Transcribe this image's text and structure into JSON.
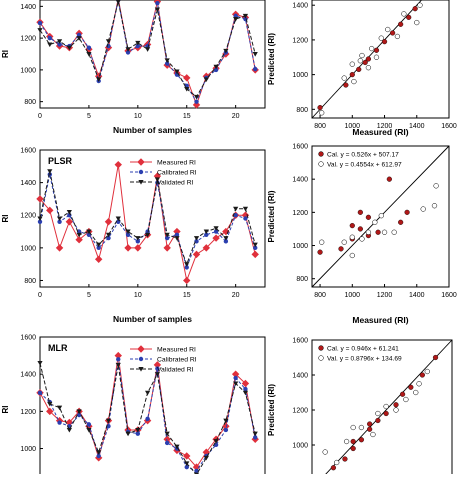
{
  "chart_data": [
    {
      "id": "top-left",
      "type": "line",
      "title": "",
      "xlabel": "Number of samples",
      "ylabel": "RI",
      "xlim": [
        0,
        23
      ],
      "ylim": [
        760,
        1440
      ],
      "xticks": [
        "0",
        "5",
        "10",
        "15",
        "20"
      ],
      "yticks": [
        "800",
        "1000",
        "1200",
        "1400"
      ],
      "series": [
        {
          "key": "measured",
          "values": [
            1300,
            1210,
            1150,
            1140,
            1230,
            1130,
            960,
            1140,
            1450,
            1120,
            1140,
            1160,
            1430,
            1030,
            980,
            950,
            780,
            960,
            1010,
            1100,
            1350,
            1330,
            1000
          ]
        },
        {
          "key": "calibrated",
          "values": [
            1295,
            1200,
            1160,
            1150,
            1220,
            1140,
            930,
            1150,
            1440,
            1110,
            1150,
            1150,
            1420,
            1040,
            970,
            900,
            800,
            950,
            1000,
            1110,
            1340,
            1320,
            1005
          ]
        },
        {
          "key": "validated",
          "values": [
            1250,
            1160,
            1180,
            1140,
            1200,
            1100,
            940,
            1180,
            1430,
            1130,
            1170,
            1130,
            1380,
            1060,
            990,
            880,
            830,
            940,
            1020,
            1120,
            1320,
            1340,
            1100
          ]
        }
      ]
    },
    {
      "id": "top-right",
      "type": "scatter",
      "xlabel": "Measured (RI)",
      "ylabel": "Predicted (RI)",
      "xlim": [
        750,
        1600
      ],
      "ylim": [
        750,
        1430
      ],
      "xticks": [
        "800",
        "1000",
        "1200",
        "1400",
        "1600"
      ],
      "yticks": [
        "800",
        "1000",
        "1200",
        "1400"
      ],
      "series": [
        {
          "key": "cal",
          "points": [
            [
              800,
              810
            ],
            [
              960,
              940
            ],
            [
              1000,
              1000
            ],
            [
              1040,
              1030
            ],
            [
              1080,
              1070
            ],
            [
              1100,
              1090
            ],
            [
              1150,
              1140
            ],
            [
              1200,
              1190
            ],
            [
              1250,
              1240
            ],
            [
              1300,
              1290
            ],
            [
              1350,
              1330
            ],
            [
              1390,
              1380
            ]
          ]
        },
        {
          "key": "val",
          "points": [
            [
              810,
              780
            ],
            [
              950,
              980
            ],
            [
              1000,
              1060
            ],
            [
              1060,
              1110
            ],
            [
              1100,
              1040
            ],
            [
              1120,
              1150
            ],
            [
              1150,
              1100
            ],
            [
              1180,
              1210
            ],
            [
              1220,
              1260
            ],
            [
              1280,
              1220
            ],
            [
              1320,
              1350
            ],
            [
              1400,
              1300
            ],
            [
              1420,
              1400
            ],
            [
              1050,
              1080
            ],
            [
              1010,
              960
            ]
          ]
        }
      ]
    },
    {
      "id": "mid-left",
      "type": "line",
      "title": "PLSR",
      "xlabel": "Number of samples",
      "ylabel": "RI",
      "xlim": [
        0,
        23
      ],
      "ylim": [
        760,
        1600
      ],
      "xticks": [
        "0",
        "5",
        "10",
        "15",
        "20"
      ],
      "yticks": [
        "800",
        "1000",
        "1200",
        "1400",
        "1600"
      ],
      "legend": [
        "Measured RI",
        "Calibrated RI",
        "Validated  RI"
      ],
      "series": [
        {
          "key": "measured",
          "values": [
            1300,
            1230,
            1000,
            1160,
            1050,
            1100,
            930,
            1160,
            1510,
            1000,
            1000,
            1080,
            1440,
            1000,
            1100,
            800,
            960,
            1000,
            1060,
            1100,
            1200,
            1200,
            960
          ]
        },
        {
          "key": "calibrated",
          "values": [
            1160,
            1450,
            1160,
            1200,
            1100,
            1080,
            1000,
            1060,
            1160,
            1080,
            1040,
            1100,
            1400,
            1060,
            1080,
            880,
            1040,
            1080,
            1100,
            1040,
            1200,
            1180,
            1000
          ]
        },
        {
          "key": "validated",
          "values": [
            1180,
            1470,
            1180,
            1220,
            1080,
            1100,
            1020,
            1080,
            1180,
            1100,
            1060,
            1080,
            1420,
            1080,
            1060,
            900,
            1060,
            1100,
            1120,
            1060,
            1240,
            1240,
            1020
          ]
        }
      ]
    },
    {
      "id": "mid-right",
      "type": "scatter",
      "xlabel": "Measured (RI)",
      "ylabel": "Predicted (RI)",
      "xlim": [
        750,
        1600
      ],
      "ylim": [
        750,
        1600
      ],
      "xticks": [
        "800",
        "1000",
        "1200",
        "1400",
        "1600"
      ],
      "yticks": [
        "800",
        "1000",
        "1200",
        "1400",
        "1600"
      ],
      "legend": [
        "Cal. y = 0.526x + 507.17",
        "Val. y = 0.4554x + 612.97"
      ],
      "series": [
        {
          "key": "cal",
          "points": [
            [
              800,
              960
            ],
            [
              930,
              980
            ],
            [
              1000,
              1040
            ],
            [
              1050,
              1100
            ],
            [
              1100,
              1060
            ],
            [
              1160,
              1080
            ],
            [
              1000,
              1120
            ],
            [
              1230,
              1400
            ],
            [
              1300,
              1140
            ],
            [
              1340,
              1200
            ],
            [
              1050,
              1200
            ],
            [
              1100,
              1170
            ]
          ]
        },
        {
          "key": "val",
          "points": [
            [
              810,
              1020
            ],
            [
              950,
              1020
            ],
            [
              1000,
              940
            ],
            [
              1060,
              1040
            ],
            [
              1100,
              1080
            ],
            [
              1200,
              1080
            ],
            [
              1260,
              1080
            ],
            [
              1440,
              1220
            ],
            [
              1510,
              1240
            ],
            [
              1520,
              1360
            ],
            [
              1000,
              1050
            ],
            [
              1140,
              1140
            ],
            [
              1180,
              1180
            ]
          ]
        }
      ]
    },
    {
      "id": "bottom-left",
      "type": "line",
      "title": "MLR",
      "xlabel": "",
      "ylabel": "RI",
      "xlim": [
        0,
        23
      ],
      "ylim": [
        820,
        1600
      ],
      "xticks": [],
      "yticks": [
        "1000",
        "1200",
        "1400",
        "1600"
      ],
      "legend": [
        "Measured RI",
        "Calibrated RI",
        "Validated  RI"
      ],
      "series": [
        {
          "key": "measured",
          "values": [
            1300,
            1200,
            1150,
            1140,
            1200,
            1120,
            950,
            1150,
            1500,
            1100,
            1100,
            1150,
            1450,
            1050,
            990,
            960,
            900,
            980,
            1050,
            1120,
            1400,
            1350,
            1050
          ]
        },
        {
          "key": "calibrated",
          "values": [
            1300,
            1250,
            1140,
            1120,
            1180,
            1130,
            960,
            1120,
            1480,
            1090,
            1080,
            1160,
            1430,
            1030,
            1000,
            900,
            880,
            960,
            1020,
            1100,
            1380,
            1320,
            1060
          ]
        },
        {
          "key": "validated",
          "values": [
            1460,
            1240,
            1220,
            1100,
            1200,
            1100,
            980,
            1150,
            1450,
            1080,
            1100,
            1300,
            1400,
            1080,
            1010,
            920,
            860,
            950,
            1040,
            1150,
            1350,
            1300,
            1080
          ]
        }
      ]
    },
    {
      "id": "bottom-right",
      "type": "scatter",
      "xlabel": "",
      "ylabel": "Predicted (RI)",
      "xlim": [
        750,
        1600
      ],
      "ylim": [
        800,
        1600
      ],
      "xticks": [],
      "yticks": [
        "800",
        "1000",
        "1200",
        "1400",
        "1600"
      ],
      "legend": [
        "Cal. y = 0.946x + 61.241",
        "Val.  y = 0.8796x + 134.69"
      ],
      "series": [
        {
          "key": "cal",
          "points": [
            [
              880,
              870
            ],
            [
              950,
              920
            ],
            [
              1000,
              980
            ],
            [
              1050,
              1030
            ],
            [
              1100,
              1090
            ],
            [
              1150,
              1140
            ],
            [
              1200,
              1180
            ],
            [
              1260,
              1230
            ],
            [
              1300,
              1290
            ],
            [
              1350,
              1330
            ],
            [
              1420,
              1400
            ],
            [
              1500,
              1500
            ],
            [
              1100,
              1120
            ],
            [
              1000,
              1020
            ]
          ]
        },
        {
          "key": "val",
          "points": [
            [
              830,
              960
            ],
            [
              900,
              900
            ],
            [
              960,
              1020
            ],
            [
              1050,
              1100
            ],
            [
              1120,
              1060
            ],
            [
              1200,
              1220
            ],
            [
              1260,
              1200
            ],
            [
              1320,
              1260
            ],
            [
              1380,
              1300
            ],
            [
              1400,
              1350
            ],
            [
              1450,
              1420
            ],
            [
              1000,
              1100
            ],
            [
              1150,
              1180
            ]
          ]
        }
      ]
    }
  ],
  "colors": {
    "measured": "#e0303c",
    "calibrated": "#2b3fb0",
    "validated": "#1a1a1a",
    "cal_point": "#b01818",
    "val_point": "#ffffff",
    "axis": "#000000"
  }
}
